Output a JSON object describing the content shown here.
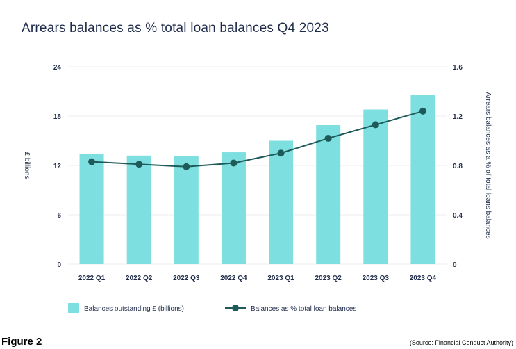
{
  "title": "Arrears balances as % total loan balances Q4 2023",
  "figure_label": "Figure 2",
  "source": "(Source: Financial Conduct Authority)",
  "colors": {
    "bar": "#7ddfdf",
    "line": "#1f5a5a",
    "axis_text": "#1e2b4a",
    "grid": "#eeeeee"
  },
  "chart_data": {
    "type": "bar",
    "categories": [
      "2022 Q1",
      "2022 Q2",
      "2022 Q3",
      "2022 Q4",
      "2023 Q1",
      "2023 Q2",
      "2023 Q3",
      "2023 Q4"
    ],
    "series": [
      {
        "name": "Balances outstanding £ (billions)",
        "type": "bar",
        "axis": "left",
        "values": [
          13.4,
          13.2,
          13.1,
          13.6,
          15.0,
          16.9,
          18.8,
          20.6
        ]
      },
      {
        "name": "Balances as % total loan balances",
        "type": "line",
        "axis": "right",
        "values": [
          0.83,
          0.81,
          0.79,
          0.82,
          0.9,
          1.02,
          1.13,
          1.24
        ]
      }
    ],
    "ylabel": "£ billions",
    "y2label": "Arrears balances as a % of total loans balances",
    "ylim": [
      0,
      24
    ],
    "yticks": [
      0,
      6,
      12,
      18,
      24
    ],
    "y2lim": [
      0,
      1.6
    ],
    "y2ticks": [
      "0",
      "0.4",
      "0.8",
      "1.2",
      "1.6"
    ],
    "legend_position": "bottom",
    "grid": true
  }
}
